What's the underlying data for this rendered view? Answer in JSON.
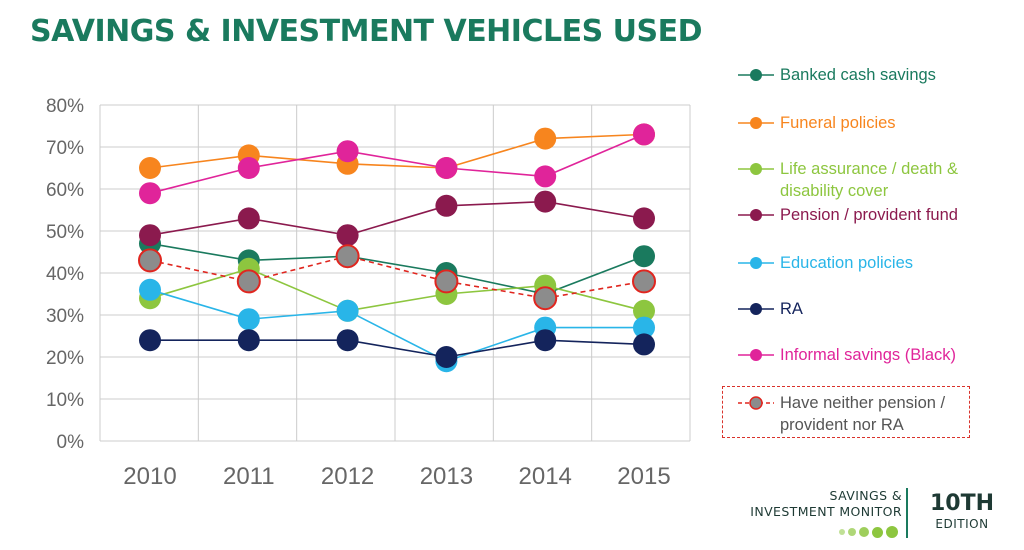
{
  "title": "SAVINGS & INVESTMENT VEHICLES USED",
  "colors": {
    "title": "#1a7a5e",
    "axis_text": "#666666",
    "grid": "#cccccc"
  },
  "chart_data": {
    "type": "line",
    "title": "SAVINGS & INVESTMENT VEHICLES USED",
    "x": [
      "2010",
      "2011",
      "2012",
      "2013",
      "2014",
      "2015"
    ],
    "ylim": [
      0,
      80
    ],
    "y_ticks": [
      "0%",
      "10%",
      "20%",
      "30%",
      "40%",
      "50%",
      "60%",
      "70%",
      "80%"
    ],
    "grid": true,
    "legend_position": "right",
    "series": [
      {
        "name": "Banked cash savings",
        "color": "#1a7a5e",
        "values": [
          47,
          43,
          44,
          40,
          35,
          44
        ]
      },
      {
        "name": "Funeral policies",
        "color": "#f7851e",
        "values": [
          65,
          68,
          66,
          65,
          72,
          73
        ]
      },
      {
        "name": "Life assurance / death & disability cover",
        "color": "#8dc63f",
        "values": [
          34,
          41,
          31,
          35,
          37,
          31
        ]
      },
      {
        "name": "Pension / provident fund",
        "color": "#8b1a4e",
        "values": [
          49,
          53,
          49,
          56,
          57,
          53
        ]
      },
      {
        "name": "Education policies",
        "color": "#29b5e8",
        "values": [
          36,
          29,
          31,
          19,
          27,
          27
        ]
      },
      {
        "name": "RA",
        "color": "#14245c",
        "values": [
          24,
          24,
          24,
          20,
          24,
          23
        ]
      },
      {
        "name": "Informal savings (Black)",
        "color": "#e0249a",
        "values": [
          59,
          65,
          69,
          65,
          63,
          73
        ]
      },
      {
        "name": "Have neither pension / provident nor RA",
        "color": "#8c8c8c",
        "line_color": "#e0261f",
        "dashed": true,
        "marker_outline": "#e0261f",
        "values": [
          43,
          38,
          44,
          38,
          34,
          38
        ]
      }
    ]
  },
  "legend": {
    "items": [
      "Banked cash savings",
      "Funeral policies",
      "Life assurance / death & disability cover",
      "Pension / provident fund",
      "Education policies",
      "RA",
      "Informal savings (Black)",
      "Have neither pension / provident nor RA"
    ]
  },
  "brand": {
    "line1": "SAVINGS &",
    "line2": "INVESTMENT MONITOR",
    "badge_big": "10TH",
    "badge_small": "EDITION",
    "dot_color": "#8dc63f",
    "text_color": "#1e3a34"
  }
}
